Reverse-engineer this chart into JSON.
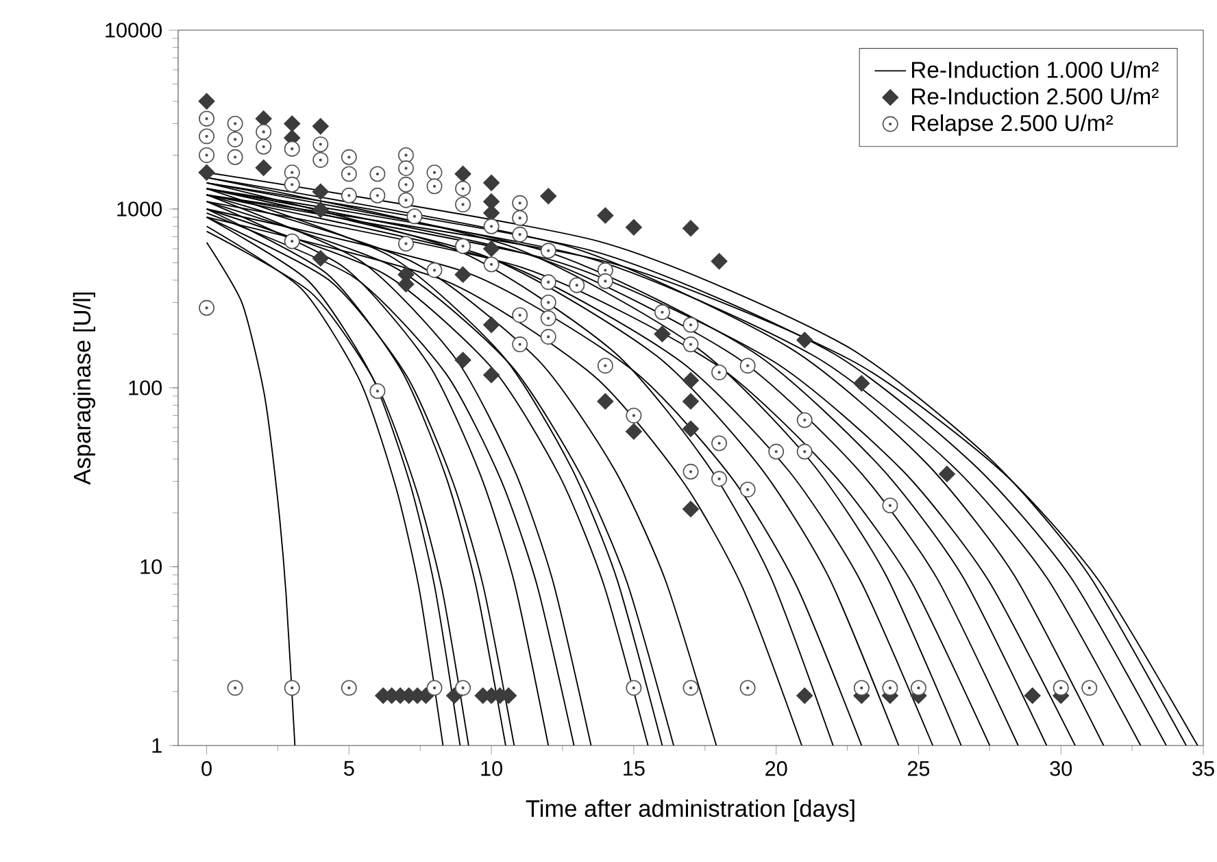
{
  "chart_data": {
    "type": "line",
    "xlabel": "Time after administration [days]",
    "ylabel": "Asparaginase [U/l]",
    "xlim": [
      -1,
      35
    ],
    "ylim": [
      1,
      10000
    ],
    "log": "y",
    "xticks": [
      0,
      5,
      10,
      15,
      20,
      25,
      30,
      35
    ],
    "yticks": [
      1,
      10,
      100,
      1000,
      10000
    ],
    "legend": "top right",
    "grid": false,
    "series": [
      {
        "name": "Re-Induction 1.000 U/m²",
        "type": "line",
        "color": "#000000",
        "marker": "none",
        "x": [
          0,
          1.24,
          2.02,
          2.48,
          2.79,
          3.1
        ],
        "values": [
          650,
          299,
          93,
          25,
          7.0,
          1
        ]
      },
      {
        "type": "line",
        "color": "#000000",
        "marker": "none",
        "x": [
          0,
          3.32,
          5.4,
          6.64,
          7.47,
          8.3
        ],
        "values": [
          800,
          359,
          108,
          28,
          7.4,
          1
        ]
      },
      {
        "type": "line",
        "color": "#000000",
        "marker": "none",
        "x": [
          0,
          3.56,
          5.79,
          7.12,
          8.01,
          8.9
        ],
        "values": [
          900,
          398,
          117,
          30,
          7.7,
          1
        ]
      },
      {
        "type": "line",
        "color": "#000000",
        "marker": "none",
        "x": [
          0,
          3.68,
          5.98,
          7.36,
          8.28,
          9.2
        ],
        "values": [
          750,
          339,
          103,
          27,
          7.3,
          1
        ]
      },
      {
        "type": "line",
        "color": "#000000",
        "marker": "none",
        "x": [
          0,
          4.2,
          6.83,
          8.4,
          9.45,
          10.5
        ],
        "values": [
          1000,
          437,
          126,
          32,
          7.9,
          1
        ]
      },
      {
        "type": "line",
        "color": "#000000",
        "marker": "none",
        "x": [
          0,
          4.32,
          7.02,
          8.64,
          9.72,
          10.8
        ],
        "values": [
          900,
          398,
          117,
          30,
          7.7,
          1
        ]
      },
      {
        "type": "line",
        "color": "#000000",
        "marker": "none",
        "x": [
          0,
          4.8,
          7.8,
          9.6,
          10.8,
          12.0
        ],
        "values": [
          1100,
          475,
          135,
          33,
          8.2,
          1
        ]
      },
      {
        "type": "line",
        "color": "#000000",
        "marker": "none",
        "x": [
          0,
          5.16,
          8.39,
          10.32,
          11.61,
          12.9
        ],
        "values": [
          950,
          417,
          121,
          31,
          7.8,
          1
        ]
      },
      {
        "type": "line",
        "color": "#000000",
        "marker": "none",
        "x": [
          0,
          5.4,
          8.78,
          10.8,
          12.15,
          13.5
        ],
        "values": [
          1200,
          513,
          143,
          35,
          8.4,
          1
        ]
      },
      {
        "type": "line",
        "color": "#000000",
        "marker": "none",
        "x": [
          0,
          6.2,
          10.08,
          12.4,
          13.95,
          15.5
        ],
        "values": [
          1000,
          437,
          126,
          32,
          7.9,
          1
        ]
      },
      {
        "type": "line",
        "color": "#000000",
        "marker": "none",
        "x": [
          0,
          6.4,
          10.4,
          12.8,
          14.4,
          16.0
        ],
        "values": [
          1300,
          550,
          151,
          36,
          8.6,
          1
        ]
      },
      {
        "type": "line",
        "color": "#000000",
        "marker": "none",
        "x": [
          0,
          6.56,
          10.66,
          13.12,
          14.76,
          16.4
        ],
        "values": [
          1100,
          475,
          135,
          33,
          8.2,
          1
        ]
      },
      {
        "type": "line",
        "color": "#000000",
        "marker": "none",
        "x": [
          0,
          7.16,
          11.64,
          14.32,
          16.11,
          17.9
        ],
        "values": [
          1200,
          513,
          143,
          35,
          8.4,
          1
        ]
      },
      {
        "type": "line",
        "color": "#000000",
        "marker": "none",
        "x": [
          0,
          8.36,
          13.59,
          16.72,
          18.81,
          20.9
        ],
        "values": [
          900,
          398,
          117,
          30,
          7.7,
          1
        ]
      },
      {
        "type": "line",
        "color": "#000000",
        "marker": "none",
        "x": [
          0,
          8.8,
          14.3,
          17.6,
          19.8,
          22.0
        ],
        "values": [
          1400,
          587,
          159,
          37,
          8.8,
          1
        ]
      },
      {
        "type": "line",
        "color": "#000000",
        "marker": "none",
        "x": [
          0,
          9.2,
          14.95,
          18.4,
          20.7,
          23.0
        ],
        "values": [
          1000,
          437,
          126,
          32,
          7.9,
          1
        ]
      },
      {
        "type": "line",
        "color": "#000000",
        "marker": "none",
        "x": [
          0,
          9.72,
          15.8,
          19.44,
          21.87,
          24.3
        ],
        "values": [
          1300,
          550,
          151,
          36,
          8.6,
          1
        ]
      },
      {
        "type": "line",
        "color": "#000000",
        "marker": "none",
        "x": [
          0,
          10.2,
          16.58,
          20.4,
          22.95,
          25.5
        ],
        "values": [
          1200,
          513,
          143,
          35,
          8.4,
          1
        ]
      },
      {
        "type": "line",
        "color": "#000000",
        "marker": "none",
        "x": [
          0,
          10.6,
          17.23,
          21.2,
          23.85,
          26.5
        ],
        "values": [
          1500,
          624,
          167,
          39,
          9.0,
          1
        ]
      },
      {
        "type": "line",
        "color": "#000000",
        "marker": "none",
        "x": [
          0,
          11.0,
          17.88,
          22.0,
          24.75,
          27.5
        ],
        "values": [
          1100,
          475,
          135,
          33,
          8.2,
          1
        ]
      },
      {
        "type": "line",
        "color": "#000000",
        "marker": "none",
        "x": [
          0,
          11.4,
          18.53,
          22.8,
          25.65,
          28.5
        ],
        "values": [
          1300,
          550,
          151,
          36,
          8.6,
          1
        ]
      },
      {
        "type": "line",
        "color": "#000000",
        "marker": "none",
        "x": [
          0,
          11.8,
          19.18,
          23.6,
          26.55,
          29.5
        ],
        "values": [
          1400,
          587,
          159,
          37,
          8.8,
          1
        ]
      },
      {
        "type": "line",
        "color": "#000000",
        "marker": "none",
        "x": [
          0,
          12.2,
          19.83,
          24.4,
          27.45,
          30.5
        ],
        "values": [
          1200,
          513,
          143,
          35,
          8.4,
          1
        ]
      },
      {
        "type": "line",
        "color": "#000000",
        "marker": "none",
        "x": [
          0,
          12.6,
          20.48,
          25.2,
          28.35,
          31.5
        ],
        "values": [
          1500,
          624,
          167,
          39,
          9.0,
          1
        ]
      },
      {
        "type": "line",
        "color": "#000000",
        "marker": "none",
        "x": [
          0,
          13.12,
          21.32,
          26.24,
          29.52,
          32.8
        ],
        "values": [
          1300,
          550,
          151,
          36,
          8.6,
          1
        ]
      },
      {
        "type": "line",
        "color": "#000000",
        "marker": "none",
        "x": [
          0,
          13.48,
          21.91,
          26.96,
          30.33,
          33.7
        ],
        "values": [
          1400,
          587,
          159,
          37,
          8.8,
          1
        ]
      },
      {
        "type": "line",
        "color": "#000000",
        "marker": "none",
        "x": [
          0,
          13.76,
          22.36,
          27.52,
          30.96,
          34.4
        ],
        "values": [
          1600,
          660,
          175,
          40,
          9.1,
          1
        ]
      },
      {
        "type": "line",
        "color": "#000000",
        "marker": "none",
        "x": [
          0,
          13.92,
          22.62,
          27.84,
          31.32,
          34.8
        ],
        "values": [
          1200,
          513,
          143,
          35,
          8.4,
          1
        ]
      },
      {
        "name": "Re-Induction 2.500 U/m²",
        "type": "scatter",
        "color": "#3c3c3c",
        "marker": "diamond",
        "x": [
          0,
          0,
          2,
          2,
          3,
          3,
          4,
          4,
          4,
          4,
          7,
          7,
          9,
          9,
          9,
          10,
          10,
          10,
          10,
          10,
          10,
          12,
          14,
          14,
          15,
          17,
          18,
          15,
          17,
          17,
          17,
          16,
          17,
          21,
          23,
          26,
          6.2,
          6.5,
          6.8,
          7.1,
          7.4,
          7.7,
          8.7,
          9.7,
          10,
          10.3,
          10.6,
          21,
          23,
          24,
          25,
          29,
          30
        ],
        "values": [
          4000,
          1600,
          3200,
          1700,
          3000,
          2500,
          2900,
          1250,
          990,
          530,
          430,
          380,
          1570,
          430,
          143,
          1400,
          1100,
          950,
          600,
          225,
          118,
          1180,
          920,
          84,
          790,
          780,
          510,
          57,
          21,
          84,
          59,
          200,
          110,
          185,
          106,
          33,
          1.9,
          1.9,
          1.9,
          1.9,
          1.9,
          1.9,
          1.9,
          1.9,
          1.9,
          1.9,
          1.9,
          1.9,
          1.9,
          1.9,
          1.9,
          1.9,
          1.9
        ]
      },
      {
        "name": "Relapse 2.500 U/m²",
        "type": "scatter",
        "color": "#505050",
        "marker": "circle",
        "x": [
          0,
          0,
          0,
          0,
          1,
          1,
          1,
          2,
          2,
          3,
          3,
          3,
          3,
          4,
          4,
          5,
          5,
          5,
          6,
          6,
          6,
          7,
          7,
          7,
          7,
          7,
          7.3,
          8,
          8,
          8,
          9,
          9,
          9,
          10,
          10,
          11,
          11,
          11,
          11,
          11,
          12,
          12,
          12,
          12,
          12,
          13,
          14,
          14,
          14,
          15,
          16,
          17,
          17,
          18,
          19,
          17,
          18,
          18,
          19,
          20,
          21,
          21,
          24,
          1,
          3,
          5,
          8,
          9,
          15,
          17,
          19,
          23,
          24,
          25,
          30,
          31
        ],
        "values": [
          3200,
          2550,
          2000,
          280,
          3000,
          2450,
          1950,
          2700,
          2230,
          2170,
          1600,
          1370,
          660,
          2300,
          1880,
          1950,
          1570,
          1190,
          1570,
          1190,
          96,
          2000,
          1690,
          1370,
          1120,
          640,
          910,
          1600,
          1340,
          455,
          1300,
          1060,
          620,
          800,
          490,
          1080,
          890,
          720,
          255,
          175,
          585,
          390,
          300,
          245,
          193,
          375,
          455,
          395,
          133,
          70,
          265,
          225,
          175,
          122,
          133,
          34,
          49,
          31,
          27,
          44,
          66,
          44,
          22,
          2.1,
          2.1,
          2.1,
          2.1,
          2.1,
          2.1,
          2.1,
          2.1,
          2.1,
          2.1,
          2.1,
          2.1,
          2.1
        ]
      }
    ]
  }
}
